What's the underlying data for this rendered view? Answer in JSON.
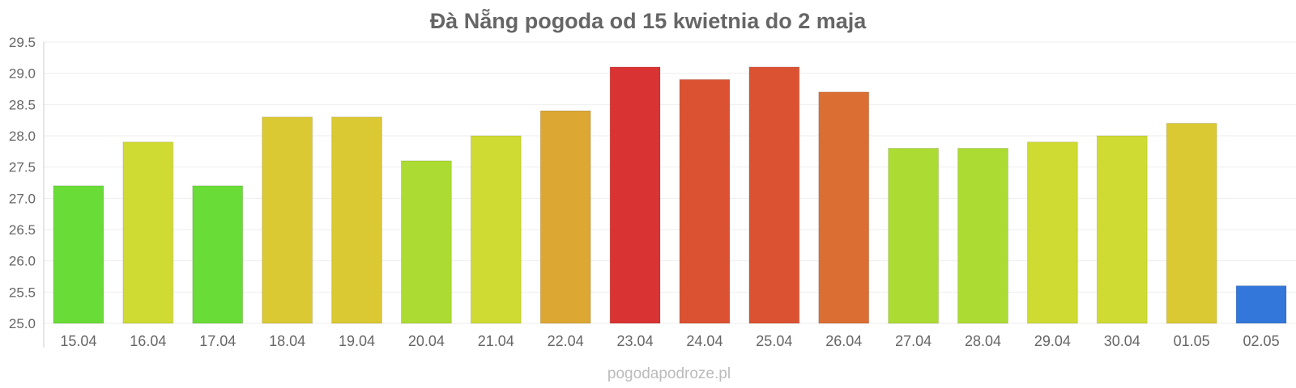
{
  "chart_data": {
    "type": "bar",
    "title": "Đà Nẵng pogoda od 15 kwietnia do 2 maja",
    "xlabel": "",
    "ylabel": "",
    "ylim": [
      25.0,
      29.5
    ],
    "yticks": [
      "25.0",
      "25.5",
      "26.0",
      "26.5",
      "27.0",
      "27.5",
      "28.0",
      "28.5",
      "29.0",
      "29.5"
    ],
    "grid": true,
    "categories": [
      "15.04",
      "16.04",
      "17.04",
      "18.04",
      "19.04",
      "20.04",
      "21.04",
      "22.04",
      "23.04",
      "24.04",
      "25.04",
      "26.04",
      "27.04",
      "28.04",
      "29.04",
      "30.04",
      "01.05",
      "02.05"
    ],
    "values": [
      27.2,
      27.9,
      27.2,
      28.3,
      28.3,
      27.6,
      28.0,
      28.4,
      29.1,
      28.9,
      29.1,
      28.7,
      27.8,
      27.8,
      27.9,
      28.0,
      28.2,
      25.6
    ],
    "colors": [
      "#6adc37",
      "#cfdb33",
      "#6adc37",
      "#dbc933",
      "#dbc933",
      "#acdc33",
      "#cfdb33",
      "#dca733",
      "#da3333",
      "#db5233",
      "#db5233",
      "#db6f33",
      "#acdc33",
      "#acdc33",
      "#cfdb33",
      "#cfdb33",
      "#dbc933",
      "#3377da"
    ]
  },
  "footer": "pogodapodroze.pl"
}
